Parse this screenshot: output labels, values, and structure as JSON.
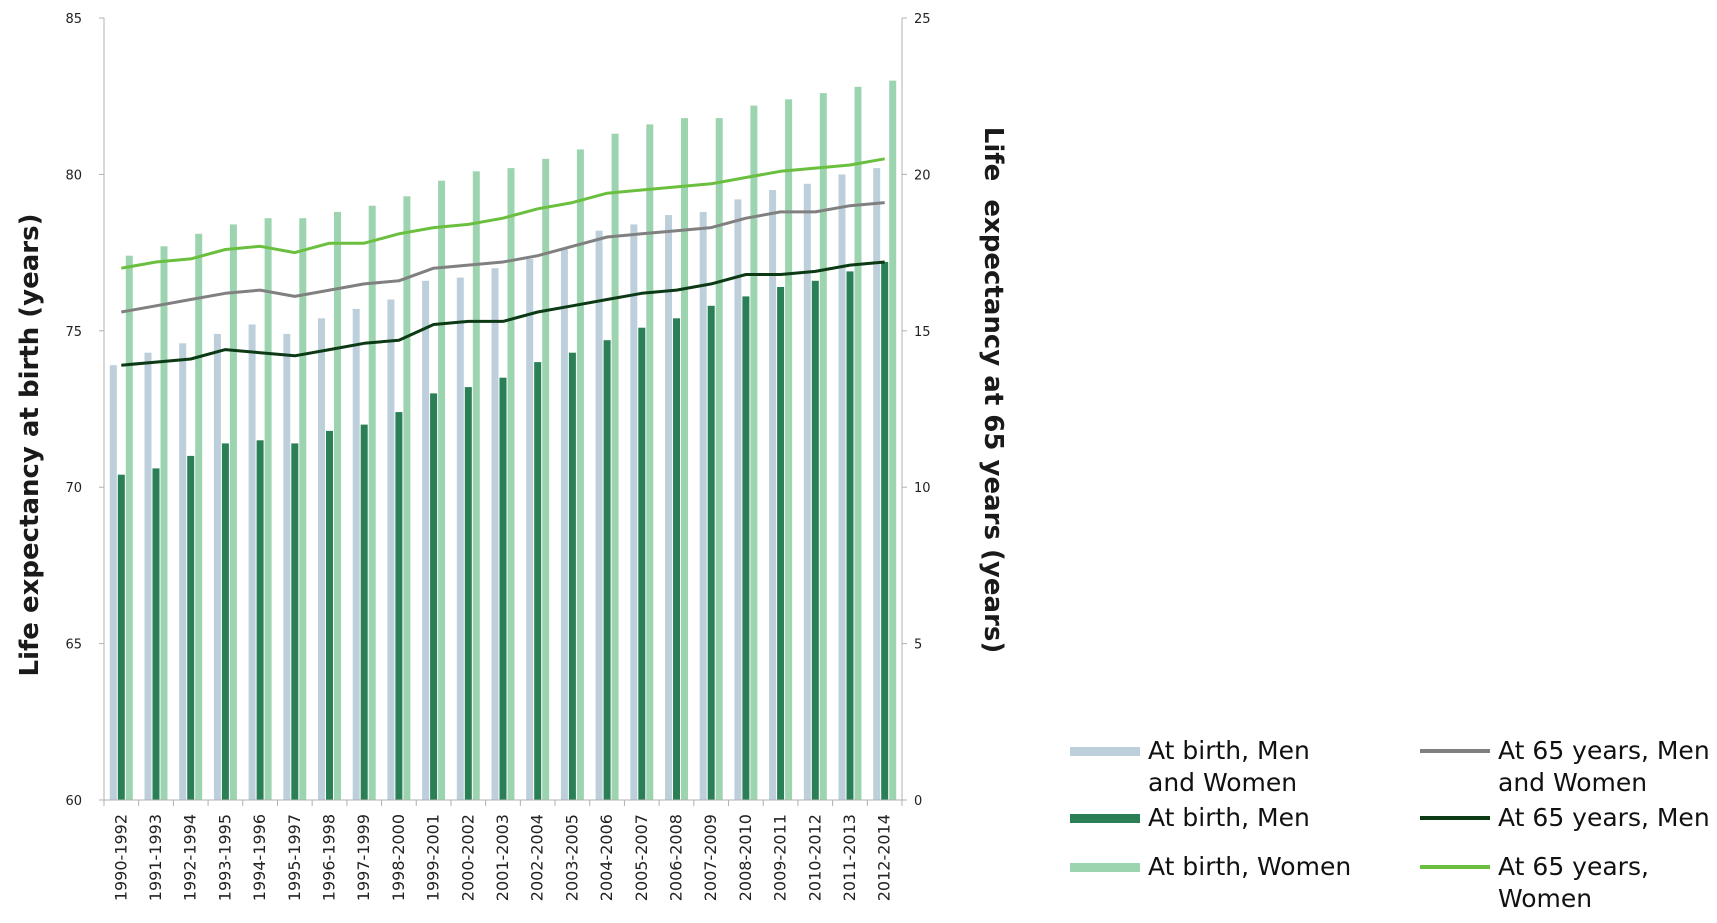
{
  "chart_data": {
    "type": "bar",
    "categories": [
      "1990-1992",
      "1991-1993",
      "1992-1994",
      "1993-1995",
      "1994-1996",
      "1995-1997",
      "1996-1998",
      "1997-1999",
      "1998-2000",
      "1999-2001",
      "2000-2002",
      "2001-2003",
      "2002-2004",
      "2003-2005",
      "2004-2006",
      "2005-2007",
      "2006-2008",
      "2007-2009",
      "2008-2010",
      "2009-2011",
      "2010-2012",
      "2011-2013",
      "2012-2014"
    ],
    "series": [
      {
        "name": "At birth, Men and Women",
        "type": "bar",
        "axis": "left",
        "color": "#bccfdb",
        "values": [
          73.9,
          74.3,
          74.6,
          74.9,
          75.2,
          74.9,
          75.4,
          75.7,
          76.0,
          76.6,
          76.7,
          77.0,
          77.3,
          77.6,
          78.2,
          78.4,
          78.7,
          78.8,
          79.2,
          79.5,
          79.7,
          80.0,
          80.2
        ]
      },
      {
        "name": "At birth, Men",
        "type": "bar",
        "axis": "left",
        "color": "#2a7f56",
        "values": [
          70.4,
          70.6,
          71.0,
          71.4,
          71.5,
          71.4,
          71.8,
          72.0,
          72.4,
          73.0,
          73.2,
          73.5,
          74.0,
          74.3,
          74.7,
          75.1,
          75.4,
          75.8,
          76.1,
          76.4,
          76.6,
          76.9,
          77.2
        ]
      },
      {
        "name": "At birth, Women",
        "type": "bar",
        "axis": "left",
        "color": "#9dd4b0",
        "values": [
          77.4,
          77.7,
          78.1,
          78.4,
          78.6,
          78.6,
          78.8,
          79.0,
          79.3,
          79.8,
          80.1,
          80.2,
          80.5,
          80.8,
          81.3,
          81.6,
          81.8,
          81.8,
          82.2,
          82.4,
          82.6,
          82.8,
          83.0
        ]
      },
      {
        "name": "At 65 years, Men and Women",
        "type": "line",
        "axis": "right",
        "color": "#808080",
        "values": [
          15.6,
          15.8,
          16.0,
          16.2,
          16.3,
          16.1,
          16.3,
          16.5,
          16.6,
          17.0,
          17.1,
          17.2,
          17.4,
          17.7,
          18.0,
          18.1,
          18.2,
          18.3,
          18.6,
          18.8,
          18.8,
          19.0,
          19.1
        ]
      },
      {
        "name": "At 65 years, Men",
        "type": "line",
        "axis": "right",
        "color": "#0b3a15",
        "values": [
          13.9,
          14.0,
          14.1,
          14.4,
          14.3,
          14.2,
          14.4,
          14.6,
          14.7,
          15.2,
          15.3,
          15.3,
          15.6,
          15.8,
          16.0,
          16.2,
          16.3,
          16.5,
          16.8,
          16.8,
          16.9,
          17.1,
          17.2
        ]
      },
      {
        "name": "At 65 years, Women",
        "type": "line",
        "axis": "right",
        "color": "#6abf3f",
        "values": [
          17.0,
          17.2,
          17.3,
          17.6,
          17.7,
          17.5,
          17.8,
          17.8,
          18.1,
          18.3,
          18.4,
          18.6,
          18.9,
          19.1,
          19.4,
          19.5,
          19.6,
          19.7,
          19.9,
          20.1,
          20.2,
          20.3,
          20.5
        ]
      }
    ],
    "ylabel": "Life expectancy at birth (years)",
    "ylabel_right": "Life  expectancy at 65 years (years)",
    "ylim": [
      60,
      85
    ],
    "ylim_right": [
      0,
      25
    ],
    "yticks": [
      "60",
      "65",
      "70",
      "75",
      "80",
      "85"
    ],
    "yticks_right": [
      "0",
      "5",
      "10",
      "15",
      "20",
      "25"
    ],
    "grid": false,
    "legend_position": "bottom-right"
  },
  "legend": {
    "items": [
      {
        "label": "At birth, Men and Women",
        "color": "#bccfdb",
        "kind": "bar"
      },
      {
        "label": "At birth, Men",
        "color": "#2a7f56",
        "kind": "bar"
      },
      {
        "label": "At birth, Women",
        "color": "#9dd4b0",
        "kind": "bar"
      },
      {
        "label": "At 65 years, Men and Women",
        "color": "#808080",
        "kind": "line"
      },
      {
        "label": "At 65 years, Men",
        "color": "#0b3a15",
        "kind": "line"
      },
      {
        "label": "At 65 years, Women",
        "color": "#6abf3f",
        "kind": "line"
      }
    ]
  }
}
